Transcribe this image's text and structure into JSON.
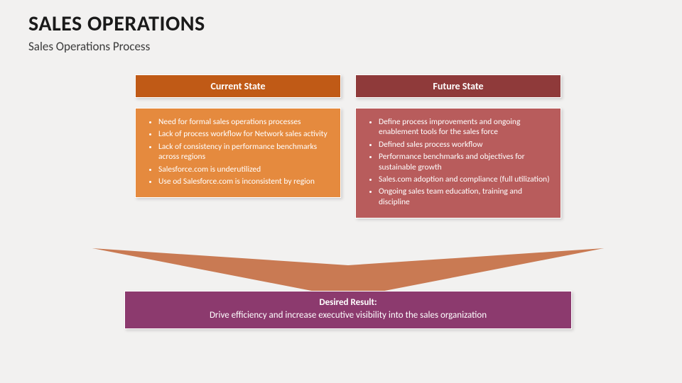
{
  "header": {
    "title": "SALES OPERATIONS",
    "subtitle": "Sales Operations Process"
  },
  "columns": {
    "left": {
      "title": "Current State",
      "header_bg": "#c05a16",
      "body_bg": "#e58a3e",
      "bullets": [
        "Need for formal sales operations processes",
        "Lack of process workflow for Network sales activity",
        "Lack of consistency in performance benchmarks across regions",
        "Salesforce.com is underutilized",
        "Use od Salesforce.com is inconsistent by region"
      ]
    },
    "right": {
      "title": "Future State",
      "header_bg": "#8f3a3a",
      "body_bg": "#b85c5c",
      "bullets": [
        "Define process improvements and ongoing enablement tools for the sales force",
        "Defined sales process workflow",
        "Performance benchmarks and objectives for sustainable growth",
        "Sales.com adoption and compliance (full utilization)",
        "Ongoing sales team education, training and discipline"
      ]
    }
  },
  "chevron": {
    "fill": "#c97a53"
  },
  "result": {
    "bg": "#8c3a6e",
    "title": "Desired Result:",
    "text": "Drive efficiency and increase executive visibility into the sales organization"
  }
}
